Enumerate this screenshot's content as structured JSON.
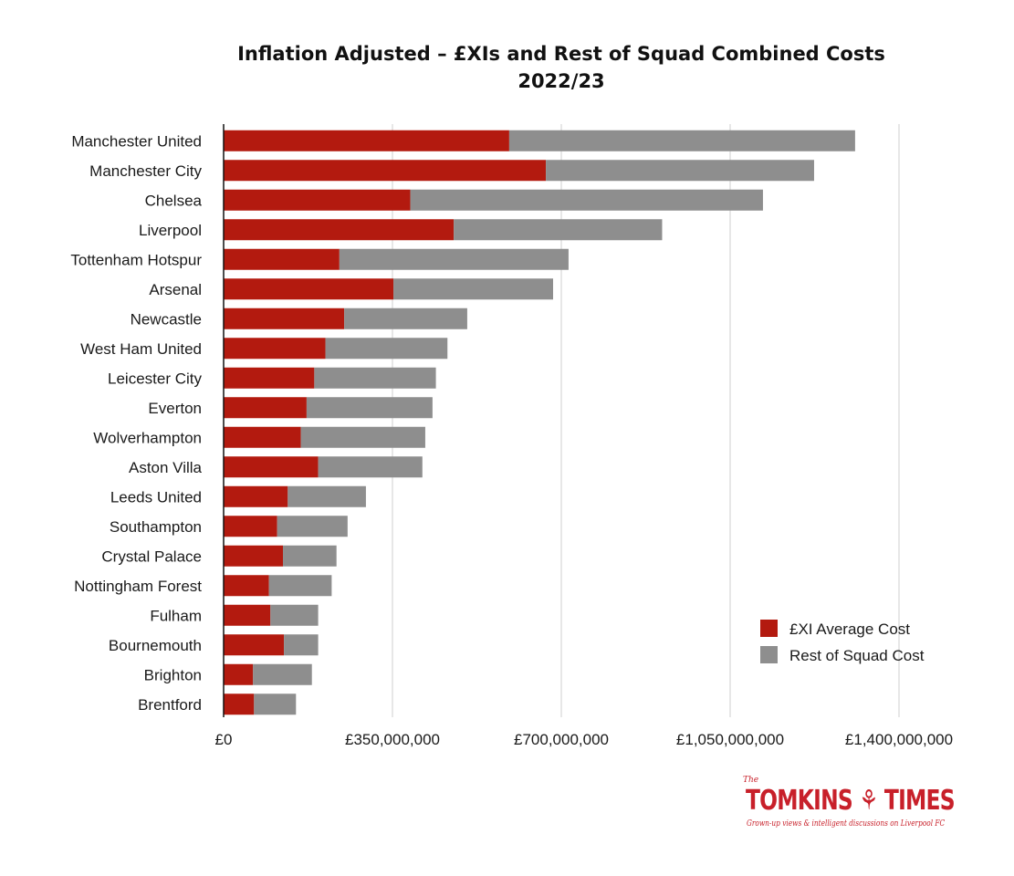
{
  "chart_data": {
    "type": "bar",
    "orientation": "horizontal",
    "stacked": true,
    "title": "Inflation Adjusted – £XIs and Rest of Squad Combined Costs",
    "subtitle": "2022/23",
    "xlim": [
      0,
      1400000000
    ],
    "xticks": [
      "£0",
      "£350,000,000",
      "£700,000,000",
      "£1,050,000,000",
      "£1,400,000,000"
    ],
    "grid": true,
    "legend_position": "bottom-right",
    "categories": [
      "Manchester United",
      "Manchester City",
      "Chelsea",
      "Liverpool",
      "Tottenham Hotspur",
      "Arsenal",
      "Newcastle",
      "West Ham United",
      "Leicester City",
      "Everton",
      "Wolverhampton",
      "Aston Villa",
      "Leeds United",
      "Southampton",
      "Crystal Palace",
      "Nottingham Forest",
      "Fulham",
      "Bournemouth",
      "Brighton",
      "Brentford"
    ],
    "series": [
      {
        "name": "£XI Average Cost",
        "color": "#b31a0f",
        "values": [
          592000000,
          668000000,
          387000000,
          477000000,
          240000000,
          352000000,
          250000000,
          211000000,
          188000000,
          172000000,
          160000000,
          196000000,
          133000000,
          111000000,
          123000000,
          94000000,
          97000000,
          125000000,
          61000000,
          63000000
        ]
      },
      {
        "name": "Rest of Squad Cost",
        "color": "#8e8e8e",
        "values": [
          717000000,
          556000000,
          731000000,
          432000000,
          475000000,
          331000000,
          255000000,
          253000000,
          252000000,
          261000000,
          258000000,
          216000000,
          162000000,
          146000000,
          111000000,
          130000000,
          99000000,
          71000000,
          122000000,
          87000000
        ]
      }
    ]
  },
  "logo": {
    "prefix": "The",
    "name": "TOMKINS ⚘ TIMES",
    "tagline": "Grown-up views & intelligent discussions on Liverpool FC"
  },
  "colors": {
    "accent": "#c8202a",
    "xi": "#b31a0f",
    "rest": "#8e8e8e",
    "grid": "#cfcfcf"
  }
}
